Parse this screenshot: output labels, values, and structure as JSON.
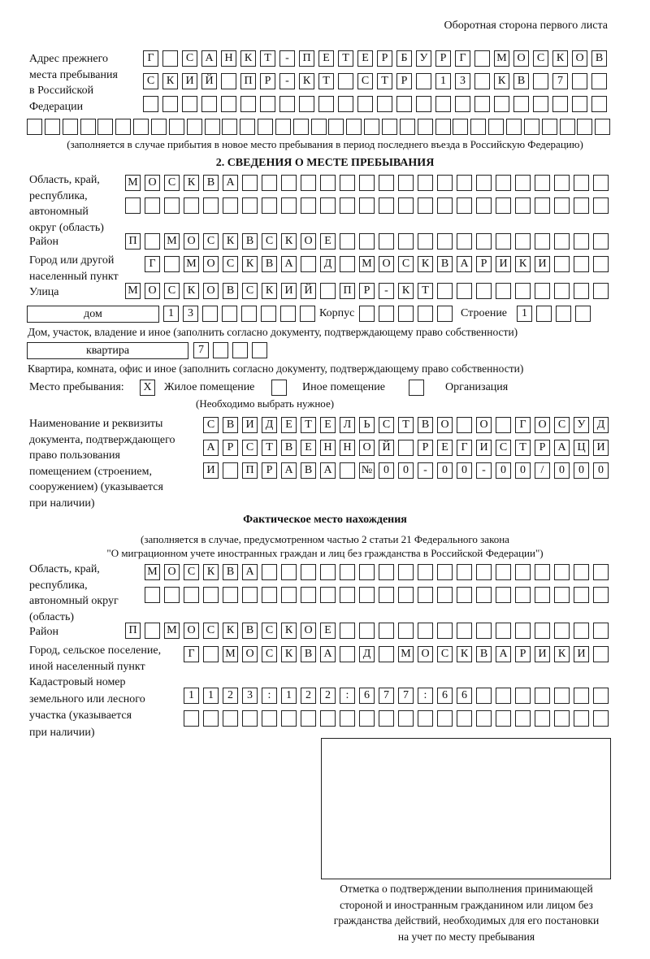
{
  "header": "Оборотная сторона первого листа",
  "prev_address": {
    "label": [
      "Адрес прежнего",
      "места пребывания",
      "в Российской",
      "Федерации"
    ],
    "rows": [
      [
        "Г",
        "",
        "С",
        "А",
        "Н",
        "К",
        "Т",
        "-",
        "П",
        "Е",
        "Т",
        "Е",
        "Р",
        "Б",
        "У",
        "Р",
        "Г",
        "",
        "М",
        "О",
        "С",
        "К",
        "О",
        "В"
      ],
      [
        "С",
        "К",
        "И",
        "Й",
        "",
        "П",
        "Р",
        "-",
        "К",
        "Т",
        "",
        "С",
        "Т",
        "Р",
        "",
        "1",
        "3",
        "",
        "К",
        "В",
        "",
        "7",
        "",
        ""
      ],
      [
        "",
        "",
        "",
        "",
        "",
        "",
        "",
        "",
        "",
        "",
        "",
        "",
        "",
        "",
        "",
        "",
        "",
        "",
        "",
        "",
        "",
        "",
        "",
        ""
      ],
      [
        "",
        "",
        "",
        "",
        "",
        "",
        "",
        "",
        "",
        "",
        "",
        "",
        "",
        "",
        "",
        "",
        "",
        "",
        "",
        "",
        "",
        "",
        "",
        "",
        "",
        "",
        "",
        "",
        "",
        "",
        "",
        "",
        ""
      ]
    ],
    "note": "(заполняется в случае прибытия в новое место пребывания в период последнего въезда в Российскую Федерацию)"
  },
  "section2": {
    "title": "2. СВЕДЕНИЯ О МЕСТЕ ПРЕБЫВАНИЯ",
    "region_label": [
      "Область, край,",
      "республика,",
      "автономный",
      "округ (область)"
    ],
    "region_rows": [
      [
        "М",
        "О",
        "С",
        "К",
        "В",
        "А",
        "",
        "",
        "",
        "",
        "",
        "",
        "",
        "",
        "",
        "",
        "",
        "",
        "",
        "",
        "",
        "",
        "",
        "",
        ""
      ],
      [
        "",
        "",
        "",
        "",
        "",
        "",
        "",
        "",
        "",
        "",
        "",
        "",
        "",
        "",
        "",
        "",
        "",
        "",
        "",
        "",
        "",
        "",
        "",
        "",
        ""
      ]
    ],
    "district_label": "Район",
    "district_row": [
      "П",
      "",
      "М",
      "О",
      "С",
      "К",
      "В",
      "С",
      "К",
      "О",
      "Е",
      "",
      "",
      "",
      "",
      "",
      "",
      "",
      "",
      "",
      "",
      "",
      "",
      "",
      ""
    ],
    "city_label": [
      "Город или другой",
      "населенный пункт"
    ],
    "city_row": [
      "Г",
      "",
      "М",
      "О",
      "С",
      "К",
      "В",
      "А",
      "",
      "Д",
      "",
      "М",
      "О",
      "С",
      "К",
      "В",
      "А",
      "Р",
      "И",
      "К",
      "И",
      "",
      "",
      ""
    ],
    "street_label": "Улица",
    "street_row": [
      "М",
      "О",
      "С",
      "К",
      "О",
      "В",
      "С",
      "К",
      "И",
      "Й",
      "",
      "П",
      "Р",
      "-",
      "К",
      "Т",
      "",
      "",
      "",
      "",
      "",
      "",
      "",
      "",
      ""
    ],
    "house": {
      "type": "дом",
      "number": [
        "1",
        "3",
        "",
        "",
        "",
        "",
        "",
        ""
      ],
      "korpus_label": "Корпус",
      "korpus": [
        "",
        "",
        "",
        "",
        ""
      ],
      "building_label": "Строение",
      "building": [
        "1",
        "",
        "",
        ""
      ],
      "note": "Дом, участок, владение и иное (заполнить согласно документу, подтверждающему право собственности)"
    },
    "apartment": {
      "type": "квартира",
      "number": [
        "7",
        "",
        "",
        ""
      ],
      "note": "Квартира, комната, офис и иное (заполнить согласно документу, подтверждающему право собственности)"
    },
    "place": {
      "label": "Место пребывания:",
      "options": [
        {
          "mark": "X",
          "label": "Жилое помещение"
        },
        {
          "mark": "",
          "label": "Иное помещение"
        },
        {
          "mark": "",
          "label": "Организация"
        }
      ],
      "note": "(Необходимо выбрать нужное)"
    },
    "doc_label": [
      "Наименование и реквизиты",
      "документа, подтверждающего",
      "право пользования",
      "помещением (строением,",
      "сооружением) (указывается",
      "при наличии)"
    ],
    "doc_rows": [
      [
        "С",
        "В",
        "И",
        "Д",
        "Е",
        "Т",
        "Е",
        "Л",
        "Ь",
        "С",
        "Т",
        "В",
        "О",
        "",
        "О",
        "",
        "Г",
        "О",
        "С",
        "У",
        "Д"
      ],
      [
        "А",
        "Р",
        "С",
        "Т",
        "В",
        "Е",
        "Н",
        "Н",
        "О",
        "Й",
        "",
        "Р",
        "Е",
        "Г",
        "И",
        "С",
        "Т",
        "Р",
        "А",
        "Ц",
        "И"
      ],
      [
        "И",
        "",
        "П",
        "Р",
        "А",
        "В",
        "А",
        "",
        "№",
        "0",
        "0",
        "-",
        "0",
        "0",
        "-",
        "0",
        "0",
        "/",
        "0",
        "0",
        "0"
      ]
    ]
  },
  "actual": {
    "title": "Фактическое место нахождения",
    "note": [
      "(заполняется в случае, предусмотренном частью 2 статьи 21 Федерального закона",
      "\"О миграционном учете иностранных граждан и лиц без гражданства в Российской Федерации\")"
    ],
    "region_label": [
      "Область, край,",
      "республика,",
      "автономный округ",
      "(область)"
    ],
    "region_rows": [
      [
        "М",
        "О",
        "С",
        "К",
        "В",
        "А",
        "",
        "",
        "",
        "",
        "",
        "",
        "",
        "",
        "",
        "",
        "",
        "",
        "",
        "",
        "",
        "",
        "",
        ""
      ],
      [
        "",
        "",
        "",
        "",
        "",
        "",
        "",
        "",
        "",
        "",
        "",
        "",
        "",
        "",
        "",
        "",
        "",
        "",
        "",
        "",
        "",
        "",
        "",
        ""
      ]
    ],
    "district_label": "Район",
    "district_row": [
      "П",
      "",
      "М",
      "О",
      "С",
      "К",
      "В",
      "С",
      "К",
      "О",
      "Е",
      "",
      "",
      "",
      "",
      "",
      "",
      "",
      "",
      "",
      "",
      "",
      "",
      "",
      ""
    ],
    "city_label": [
      "Город, сельское поселение,",
      "иной населенный пункт"
    ],
    "city_row": [
      "Г",
      "",
      "М",
      "О",
      "С",
      "К",
      "В",
      "А",
      "",
      "Д",
      "",
      "М",
      "О",
      "С",
      "К",
      "В",
      "А",
      "Р",
      "И",
      "К",
      "И",
      ""
    ],
    "cadastral_label": [
      "Кадастровый номер",
      "земельного или лесного",
      "участка (указывается",
      "при наличии)"
    ],
    "cadastral_rows": [
      [
        "1",
        "1",
        "2",
        "3",
        ":",
        "1",
        "2",
        "2",
        ":",
        "6",
        "7",
        "7",
        ":",
        "6",
        "6",
        "",
        "",
        "",
        "",
        "",
        "",
        ""
      ],
      [
        "",
        "",
        "",
        "",
        "",
        "",
        "",
        "",
        "",
        "",
        "",
        "",
        "",
        "",
        "",
        "",
        "",
        "",
        "",
        "",
        "",
        ""
      ]
    ]
  },
  "confirmation_caption": [
    "Отметка о подтверждении выполнения принимающей",
    "стороной и иностранным гражданином или лицом без",
    "гражданства действий, необходимых для его постановки",
    "на учет по месту пребывания"
  ]
}
